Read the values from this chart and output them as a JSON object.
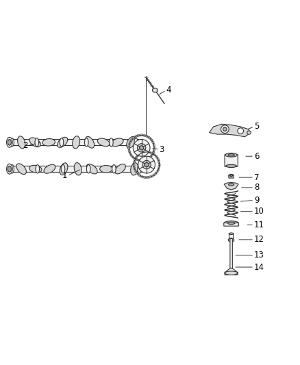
{
  "background_color": "#ffffff",
  "line_color": "#333333",
  "fill_color": "#d8d8d8",
  "light_fill": "#f2f2f2",
  "dark_fill": "#aaaaaa",
  "label_color": "#000000",
  "label_fontsize": 8.5
}
